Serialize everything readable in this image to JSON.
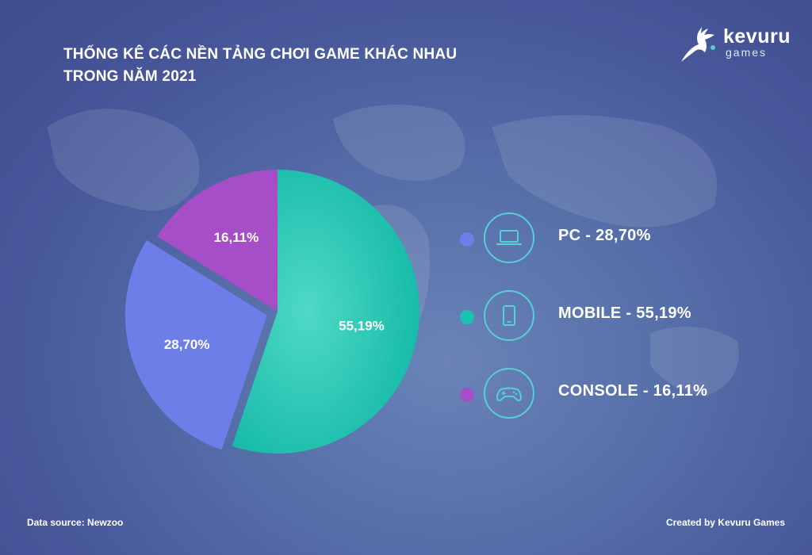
{
  "title_line1": "THỐNG KÊ CÁC NỀN TẢNG CHƠI GAME KHÁC NHAU",
  "title_line2": "TRONG NĂM 2021",
  "logo": {
    "text1": "kevuru",
    "text2": "games"
  },
  "footer": {
    "source": "Data source: Newzoo",
    "credit": "Created by Kevuru Games"
  },
  "legend": [
    {
      "label": "PC - 28,70%",
      "icon": "laptop-icon",
      "color": "#6e7ee8"
    },
    {
      "label": "MOBILE - 55,19%",
      "icon": "smartphone-icon",
      "color": "#1cc2b0"
    },
    {
      "label": "CONSOLE - 16,11%",
      "icon": "gamepad-icon",
      "color": "#a64ec8"
    }
  ],
  "chart_data": {
    "type": "pie",
    "title": "THỐNG KÊ CÁC NỀN TẢNG CHƠI GAME KHÁC NHAU TRONG NĂM 2021",
    "categories": [
      "MOBILE",
      "PC",
      "CONSOLE"
    ],
    "values": [
      55.19,
      28.7,
      16.11
    ],
    "labels": [
      "55,19%",
      "28,70%",
      "16,11%"
    ],
    "colors": [
      "#1cc2b0",
      "#6e7ee8",
      "#a64ec8"
    ],
    "exploded": "PC",
    "legend_position": "right"
  }
}
